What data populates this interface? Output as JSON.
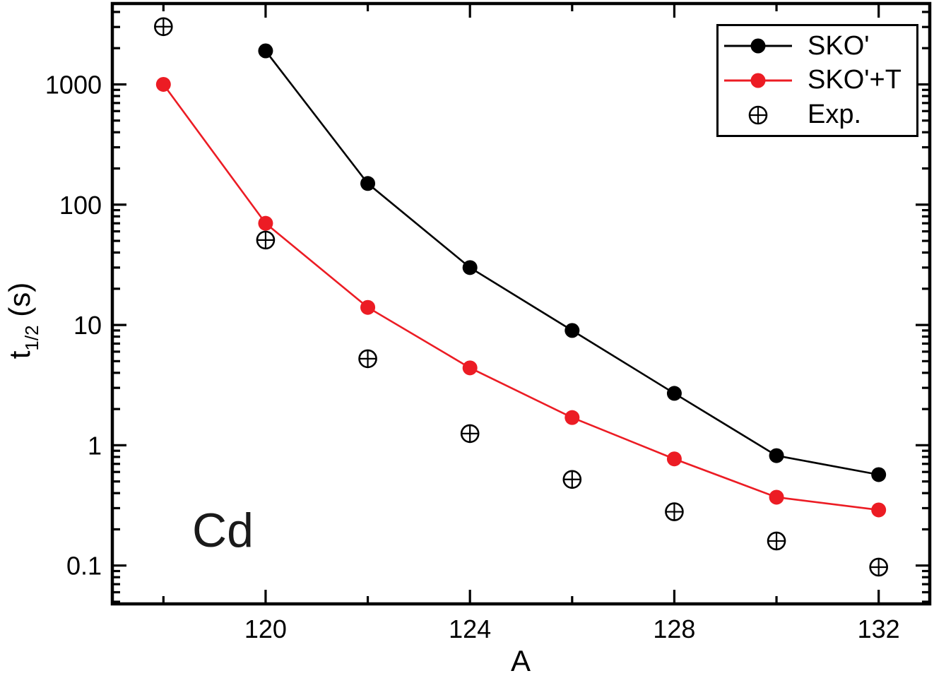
{
  "figure": {
    "kind": "scientific-line-plot",
    "background": "#ffffff"
  },
  "annotation": {
    "text": "Cd"
  },
  "y_axis_label": {
    "pre": "t",
    "sub": "1/2",
    "post": " (s)"
  },
  "legend": {
    "position": "top-right",
    "items": [
      {
        "label": "SKO'",
        "marker": "dot-line",
        "color": "#000000"
      },
      {
        "label": "SKO'+T",
        "marker": "dot-line",
        "color": "#ec1c24"
      },
      {
        "label": "Exp.",
        "marker": "circle-plus",
        "color": "#000000"
      }
    ]
  },
  "chart_data": {
    "type": "line",
    "title": "",
    "xlabel": "A",
    "ylabel": "t_1/2 (s)",
    "grid": false,
    "x_axis": {
      "min": 117,
      "max": 133,
      "major_ticks": [
        120,
        124,
        128,
        132
      ],
      "major_tick_labels": [
        "120",
        "124",
        "128",
        "132"
      ],
      "minor_ticks": [
        118,
        122,
        126,
        130
      ]
    },
    "y_axis": {
      "scale": "log",
      "min": 0.048,
      "max": 4700,
      "labeled_ticks": [
        0.1,
        1,
        10,
        100,
        1000
      ],
      "labeled_tick_labels": [
        "0.1",
        "1",
        "10",
        "100",
        "1000"
      ]
    },
    "series": [
      {
        "name": "SKO'",
        "color": "#000000",
        "marker": "filled-circle",
        "line": true,
        "x": [
          120,
          122,
          124,
          126,
          128,
          130,
          132
        ],
        "y": [
          1900,
          150,
          30,
          9,
          2.7,
          0.82,
          0.57
        ]
      },
      {
        "name": "SKO'+T",
        "color": "#ec1c24",
        "marker": "filled-circle",
        "line": true,
        "x": [
          118,
          120,
          122,
          124,
          126,
          128,
          130,
          132
        ],
        "y": [
          1000,
          70,
          14,
          4.4,
          1.7,
          0.77,
          0.37,
          0.29
        ]
      },
      {
        "name": "Exp.",
        "color": "#000000",
        "marker": "circle-plus",
        "line": false,
        "x": [
          118,
          120,
          122,
          124,
          126,
          128,
          130,
          132
        ],
        "y": [
          3018,
          50.8,
          5.24,
          1.25,
          0.52,
          0.28,
          0.16,
          0.097
        ]
      }
    ]
  }
}
